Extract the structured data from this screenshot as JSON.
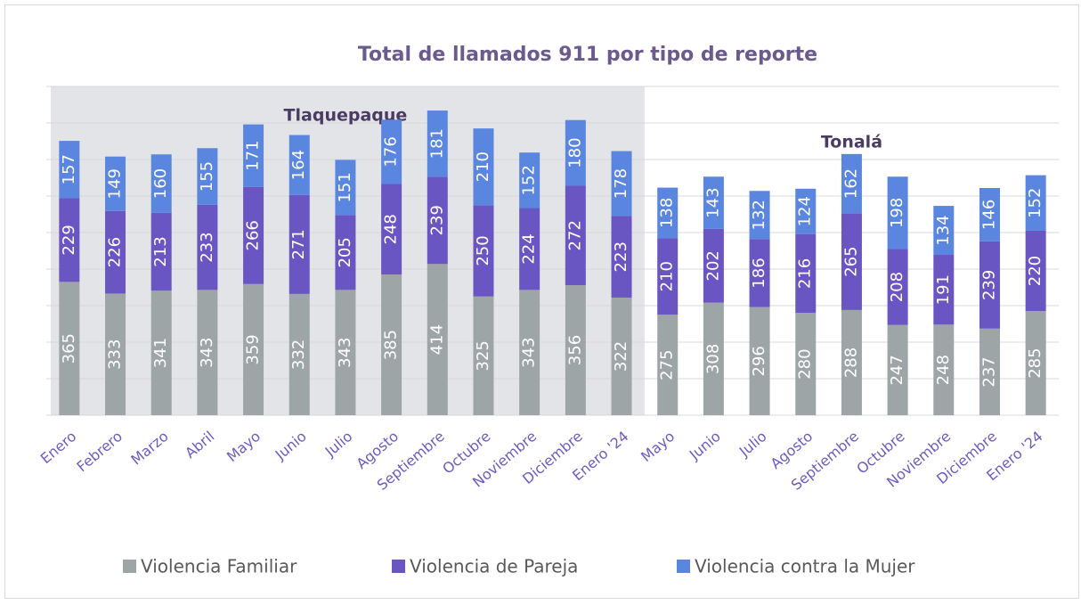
{
  "chart_data": {
    "type": "stacked_bar",
    "title": "Total de llamados 911 por tipo de reporte",
    "groups": [
      {
        "name": "Tlaquepaque",
        "shade": "#e3e4e7",
        "categories": [
          "Enero",
          "Febrero",
          "Marzo",
          "Abril",
          "Mayo",
          "Junio",
          "Julio",
          "Agosto",
          "Septiembre",
          "Octubre",
          "Noviembre",
          "Diciembre",
          "Enero '24"
        ]
      },
      {
        "name": "Tonalá",
        "shade": "#ffffff",
        "categories": [
          "Mayo",
          "Junio",
          "Julio",
          "Agosto",
          "Septiembre",
          "Octubre",
          "Noviembre",
          "Diciembre",
          "Enero '24"
        ]
      }
    ],
    "series": [
      {
        "name": "Violencia Familiar",
        "color": "#9ea5a7",
        "values": [
          365,
          333,
          341,
          343,
          359,
          332,
          343,
          385,
          414,
          325,
          343,
          356,
          322,
          275,
          308,
          296,
          280,
          288,
          247,
          248,
          237,
          285
        ]
      },
      {
        "name": "Violencia de Pareja",
        "color": "#6a56c3",
        "values": [
          229,
          226,
          213,
          233,
          266,
          271,
          205,
          248,
          239,
          250,
          224,
          272,
          223,
          210,
          202,
          186,
          216,
          265,
          208,
          191,
          239,
          220
        ]
      },
      {
        "name": "Violencia contra la Mujer",
        "color": "#5b86df",
        "values": [
          157,
          149,
          160,
          155,
          171,
          164,
          151,
          176,
          181,
          210,
          152,
          180,
          178,
          138,
          143,
          132,
          124,
          162,
          198,
          134,
          146,
          152
        ]
      }
    ],
    "ylim": [
      0,
      900
    ],
    "yticks": [
      0,
      100,
      200,
      300,
      400,
      500,
      600,
      700,
      800,
      900
    ],
    "grid": true,
    "legend": "bottom"
  }
}
